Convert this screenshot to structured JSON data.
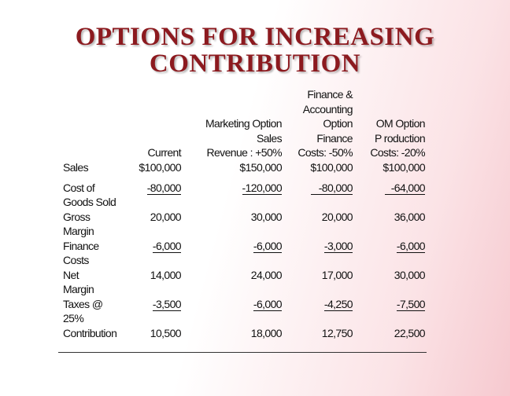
{
  "title": {
    "line1": "OPTIONS FOR INCREASING",
    "line2": "CONTRIBUTION"
  },
  "columns": [
    {
      "lines": [
        "Current"
      ]
    },
    {
      "lines": [
        "Marketing Option",
        "Sales",
        "Revenue : +50%"
      ]
    },
    {
      "lines": [
        "Finance &",
        "Accounting",
        "Option",
        "Finance",
        "Costs: -50%"
      ]
    },
    {
      "lines": [
        "OM Option",
        "P roduction",
        "Costs: -20%"
      ]
    }
  ],
  "rows": [
    {
      "label": [
        "Sales"
      ],
      "values": [
        "$100,000",
        "$150,000",
        "$100,000",
        "$100,000"
      ]
    },
    {
      "label": [
        "Cost of",
        "Goods Sold"
      ],
      "values": [
        "-80,000",
        "-120,000",
        "-80,000",
        "-64,000"
      ]
    },
    {
      "label": [
        "Gross",
        "Margin"
      ],
      "values": [
        "20,000",
        "30,000",
        "20,000",
        "36,000"
      ]
    },
    {
      "label": [
        "Finance",
        "Costs"
      ],
      "values": [
        "-6,000",
        "-6,000",
        "-3,000",
        "-6,000"
      ]
    },
    {
      "label": [
        "Net",
        "Margin"
      ],
      "values": [
        "14,000",
        "24,000",
        "17,000",
        "30,000"
      ]
    },
    {
      "label": [
        "Taxes @",
        "25%"
      ],
      "values": [
        "-3,500",
        "-6,000",
        "-4,250",
        "-7,500"
      ]
    },
    {
      "label": [
        "Contribution"
      ],
      "values": [
        "10,500",
        "18,000",
        "12,750",
        "22,500"
      ]
    }
  ]
}
